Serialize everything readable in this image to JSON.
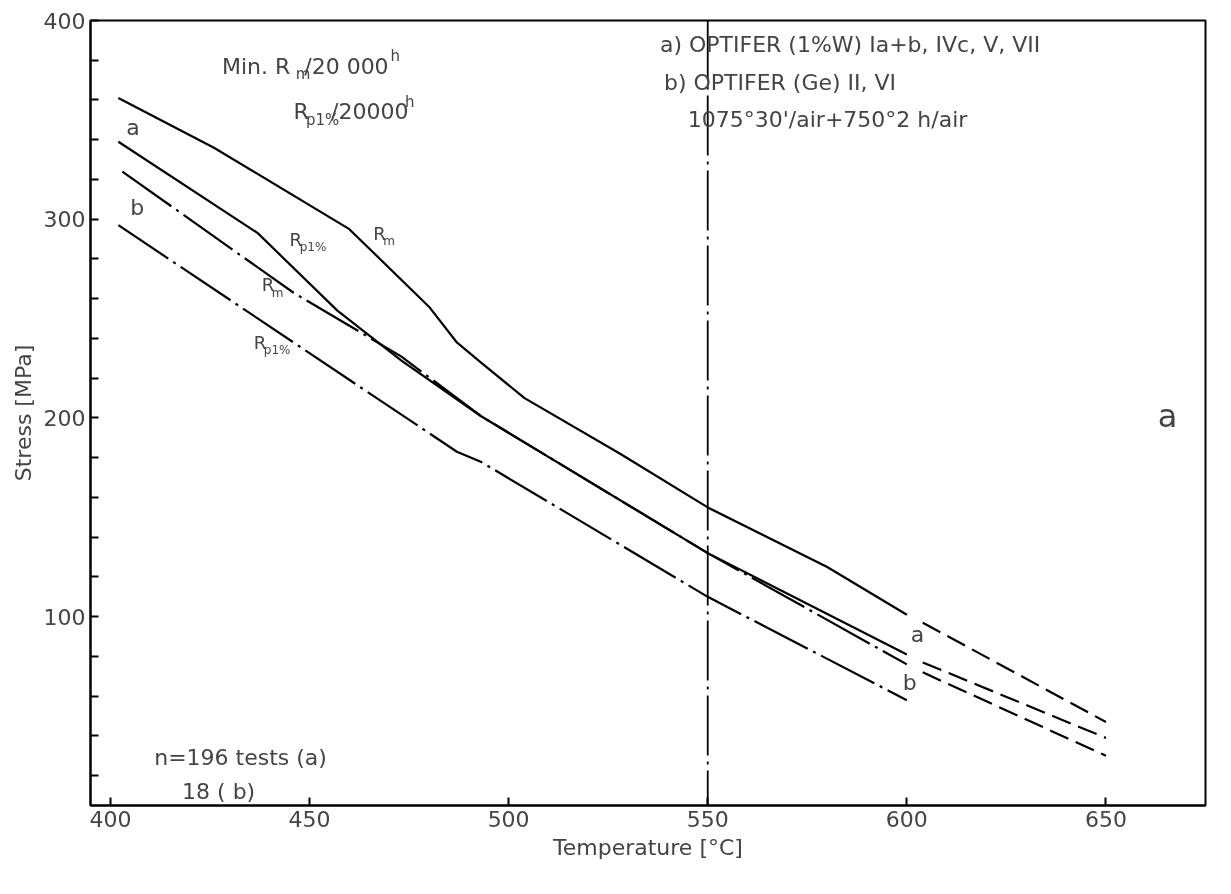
{
  "chart_data": {
    "type": "line",
    "xlabel": "Temperature [°C]",
    "ylabel": "Stress [MPa]",
    "xlim": [
      395,
      675
    ],
    "ylim": [
      5,
      400
    ],
    "xticks": [
      400,
      450,
      500,
      550,
      600,
      650
    ],
    "yticks": [
      {
        "value": 20,
        "label": null
      },
      {
        "value": 40,
        "label": null
      },
      {
        "value": 60,
        "label": null
      },
      {
        "value": 80,
        "label": null
      },
      100,
      {
        "value": 120,
        "label": null
      },
      {
        "value": 140,
        "label": null
      },
      {
        "value": 160,
        "label": null
      },
      {
        "value": 180,
        "label": null
      },
      200,
      {
        "value": 220,
        "label": null
      },
      {
        "value": 240,
        "label": null
      },
      {
        "value": 260,
        "label": null
      },
      {
        "value": 280,
        "label": null
      },
      300,
      {
        "value": 320,
        "label": null
      },
      {
        "value": 340,
        "label": null
      },
      {
        "value": 360,
        "label": null
      },
      {
        "value": 380,
        "label": null
      },
      400
    ],
    "grid": false,
    "marker": "none",
    "series": [
      {
        "color": "#000000",
        "line_style": "solid",
        "x": [
          402,
          426,
          460,
          480,
          487,
          493,
          504,
          528,
          550,
          580,
          600
        ],
        "values": [
          361,
          336,
          295,
          256,
          238,
          228,
          210,
          182,
          155,
          125,
          101
        ]
      },
      {
        "color": "#000000",
        "line_style": "solid",
        "x": [
          402,
          437,
          457,
          473,
          493,
          550,
          600
        ],
        "values": [
          339,
          293,
          254,
          229,
          201,
          132,
          81
        ]
      },
      {
        "color": "#000000",
        "line_style": "dashdot",
        "x": [
          403,
          422,
          446,
          473,
          493,
          550,
          600
        ],
        "values": [
          324,
          297,
          263,
          231,
          201,
          132,
          76
        ]
      },
      {
        "color": "#000000",
        "line_style": "dashdot",
        "x": [
          402,
          446,
          487,
          493,
          550,
          600
        ],
        "values": [
          297,
          238,
          183,
          178,
          110,
          58
        ]
      },
      {
        "color": "#000000",
        "line_style": "dashed",
        "x": [
          604,
          650
        ],
        "values": [
          97,
          47
        ]
      },
      {
        "color": "#000000",
        "line_style": "dashed",
        "x": [
          604,
          650
        ],
        "values": [
          77,
          39
        ]
      },
      {
        "color": "#000000",
        "line_style": "dashed",
        "x": [
          604,
          650
        ],
        "values": [
          72,
          30
        ]
      }
    ],
    "ref_lines": [
      {
        "axis": "x",
        "value": 550,
        "label": null,
        "color": "#000000",
        "line_style": "dashdot"
      }
    ],
    "annotations": [
      "a",
      "b",
      "R$_{p1%}$",
      "R$_{m}$",
      "R$_{m}$",
      "R$_{p1%}$",
      "a",
      "b",
      "a",
      "Min. R$_{m}$/20 000$^{h}$",
      "R$_{p1%}$/20000$^{h}$",
      "a) OPTIFER (1%W) Ia+b, IVc, V, VII",
      "b) OPTIFER (Ge) II, VI",
      "1075°30'/air+750°2 h/air",
      "n=196  tests (a)",
      "18            ( b)"
    ]
  }
}
